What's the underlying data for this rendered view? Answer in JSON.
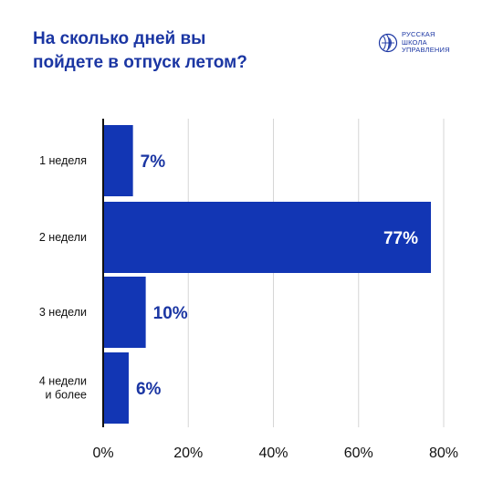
{
  "title_line1": "На сколько дней вы",
  "title_line2": "пойдете в отпуск летом?",
  "logo": {
    "line1": "РУССКАЯ",
    "line2": "ШКОЛА",
    "line3": "УПРАВЛЕНИЯ"
  },
  "colors": {
    "accent": "#1b36a3",
    "bar": "#1236b4",
    "grid": "#d6d6d6",
    "axis": "#111111"
  },
  "chart_data": {
    "type": "bar",
    "orientation": "horizontal",
    "title": "На сколько дней вы пойдете в отпуск летом?",
    "categories": [
      "1 неделя",
      "2 недели",
      "3 недели",
      "4 недели\nи более"
    ],
    "values": [
      7,
      77,
      10,
      6
    ],
    "value_labels": [
      "7%",
      "77%",
      "10%",
      "6%"
    ],
    "xlim": [
      0,
      80
    ],
    "xticks": [
      0,
      20,
      40,
      60,
      80
    ],
    "xtick_labels": [
      "0%",
      "20%",
      "40%",
      "60%",
      "80%"
    ],
    "grid": true
  }
}
